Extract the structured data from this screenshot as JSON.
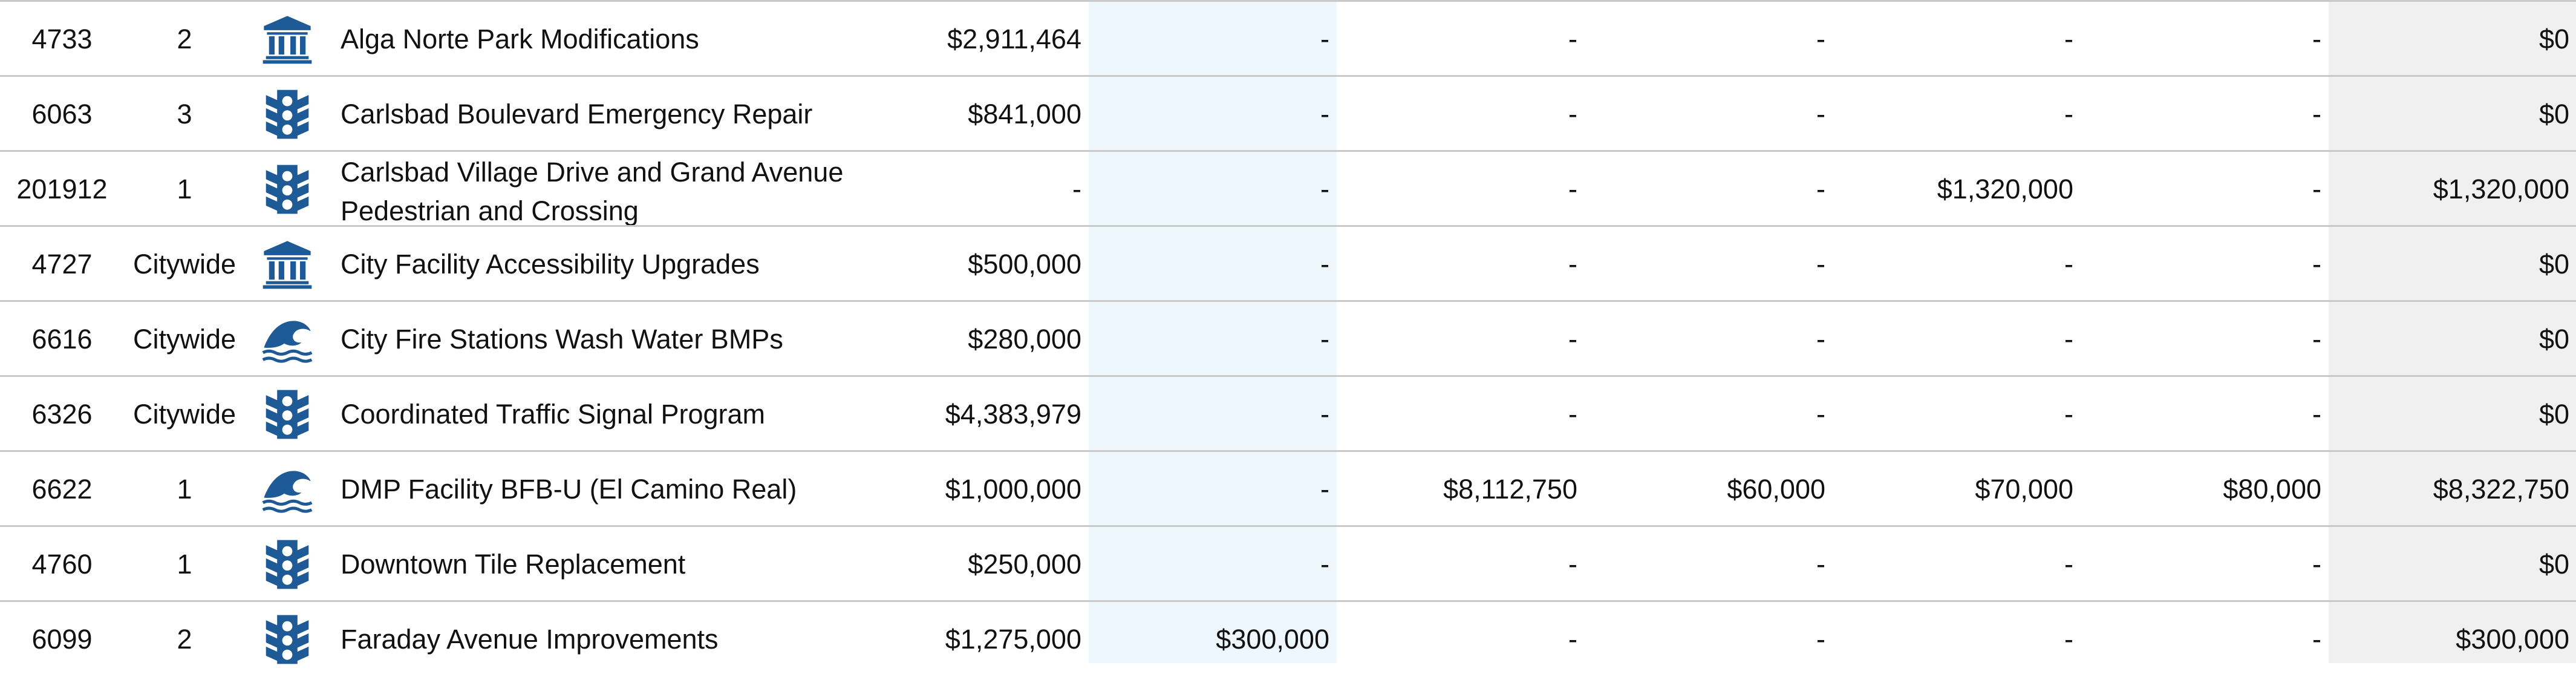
{
  "colors": {
    "icon": "#1d5a96",
    "future_shade": "#eef6fe",
    "total_shade": "#f0f0f0",
    "rule": "#c9c9c9"
  },
  "rows": [
    {
      "id": "4733",
      "district": "2",
      "icon": "building-icon",
      "name": "Alga Norte Park Modifications",
      "prior": "$2,911,464",
      "y1": "-",
      "y2": "-",
      "y3": "-",
      "y4": "-",
      "y5": "-",
      "total": "$0"
    },
    {
      "id": "6063",
      "district": "3",
      "icon": "traffic-light-icon",
      "name": "Carlsbad Boulevard Emergency Repair",
      "prior": "$841,000",
      "y1": "-",
      "y2": "-",
      "y3": "-",
      "y4": "-",
      "y5": "-",
      "total": "$0"
    },
    {
      "id": "201912",
      "district": "1",
      "icon": "traffic-light-icon",
      "name": "Carlsbad Village Drive and Grand Avenue Pedestrian and Crossing",
      "prior": "-",
      "y1": "-",
      "y2": "-",
      "y3": "-",
      "y4": "$1,320,000",
      "y5": "-",
      "total": "$1,320,000"
    },
    {
      "id": "4727",
      "district": "Citywide",
      "icon": "building-icon",
      "name": "City Facility Accessibility Upgrades",
      "prior": "$500,000",
      "y1": "-",
      "y2": "-",
      "y3": "-",
      "y4": "-",
      "y5": "-",
      "total": "$0"
    },
    {
      "id": "6616",
      "district": "Citywide",
      "icon": "wave-icon",
      "name": "City Fire Stations Wash Water BMPs",
      "prior": "$280,000",
      "y1": "-",
      "y2": "-",
      "y3": "-",
      "y4": "-",
      "y5": "-",
      "total": "$0"
    },
    {
      "id": "6326",
      "district": "Citywide",
      "icon": "traffic-light-icon",
      "name": "Coordinated Traffic Signal Program",
      "prior": "$4,383,979",
      "y1": "-",
      "y2": "-",
      "y3": "-",
      "y4": "-",
      "y5": "-",
      "total": "$0"
    },
    {
      "id": "6622",
      "district": "1",
      "icon": "wave-icon",
      "name": "DMP Facility BFB-U (El Camino Real)",
      "prior": "$1,000,000",
      "y1": "-",
      "y2": "$8,112,750",
      "y3": "$60,000",
      "y4": "$70,000",
      "y5": "$80,000",
      "total": "$8,322,750"
    },
    {
      "id": "4760",
      "district": "1",
      "icon": "traffic-light-icon",
      "name": "Downtown Tile Replacement",
      "prior": "$250,000",
      "y1": "-",
      "y2": "-",
      "y3": "-",
      "y4": "-",
      "y5": "-",
      "total": "$0"
    },
    {
      "id": "6099",
      "district": "2",
      "icon": "traffic-light-icon",
      "name": "Faraday Avenue Improvements",
      "prior": "$1,275,000",
      "y1": "$300,000",
      "y2": "-",
      "y3": "-",
      "y4": "-",
      "y5": "-",
      "total": "$300,000"
    }
  ]
}
